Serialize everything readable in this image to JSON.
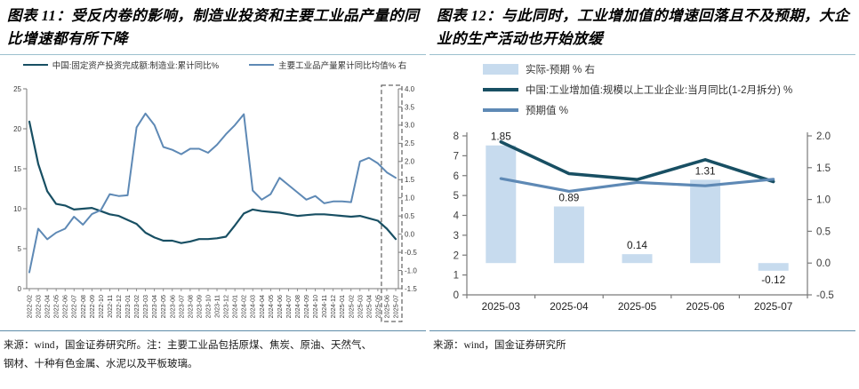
{
  "left_panel": {
    "title": "图表 11：受反内卷的影响，制造业投资和主要工业品产量的同比增速都有所下降",
    "legend": [
      {
        "label": "中国:固定资产投资完成额:制造业:累计同比%",
        "color": "#184F63",
        "type": "line"
      },
      {
        "label": "主要工业品产量累计同比均值% 右",
        "color": "#5E89B5",
        "type": "line"
      }
    ],
    "source_note_line1": "来源：wind，国金证券研究所。注：主要工业品包括原煤、焦炭、原油、天然气、",
    "source_note_line2": "钢材、十种有色金属、水泥以及平板玻璃。",
    "chart_data": {
      "type": "line",
      "x": [
        "2022-02",
        "2022-03",
        "2022-04",
        "2022-05",
        "2022-06",
        "2022-07",
        "2022-08",
        "2022-09",
        "2022-10",
        "2022-11",
        "2022-12",
        "2023-01",
        "2023-02",
        "2023-03",
        "2023-04",
        "2023-05",
        "2023-06",
        "2023-07",
        "2023-08",
        "2023-09",
        "2023-10",
        "2023-11",
        "2023-12",
        "2024-01",
        "2024-02",
        "2024-03",
        "2024-04",
        "2024-05",
        "2024-06",
        "2024-07",
        "2024-08",
        "2024-09",
        "2024-10",
        "2024-11",
        "2024-12",
        "2025-01",
        "2025-02",
        "2025-03",
        "2025-04",
        "2025-05",
        "2025-06",
        "2025-07"
      ],
      "series": [
        {
          "name": "中国:固定资产投资完成额:制造业:累计同比%",
          "axis": "left",
          "color": "#184F63",
          "width": 2.2,
          "values": [
            20.9,
            15.6,
            12.2,
            10.6,
            10.4,
            9.9,
            10.0,
            10.1,
            9.7,
            9.3,
            9.1,
            8.6,
            8.1,
            7.0,
            6.4,
            6.0,
            6.0,
            5.7,
            5.9,
            6.2,
            6.2,
            6.3,
            6.5,
            7.9,
            9.4,
            9.9,
            9.7,
            9.6,
            9.5,
            9.3,
            9.1,
            9.2,
            9.3,
            9.3,
            9.2,
            9.1,
            9.0,
            9.1,
            8.8,
            8.5,
            7.5,
            6.2
          ]
        },
        {
          "name": "主要工业品产量累计同比均值% 右",
          "axis": "right",
          "color": "#5E89B5",
          "width": 2,
          "values": [
            -1.05,
            0.15,
            -0.14,
            0.04,
            0.15,
            0.48,
            0.26,
            0.55,
            0.66,
            1.1,
            1.05,
            1.07,
            2.94,
            3.32,
            3.0,
            2.4,
            2.32,
            2.2,
            2.35,
            2.35,
            2.24,
            2.46,
            2.75,
            3.0,
            3.3,
            1.2,
            0.95,
            1.1,
            1.55,
            1.35,
            1.15,
            0.95,
            1.05,
            0.85,
            0.9,
            0.9,
            0.88,
            2.0,
            2.1,
            1.95,
            1.7,
            1.55
          ]
        }
      ],
      "left_axis": {
        "min": 0,
        "max": 25,
        "step": 5,
        "decimals": 0
      },
      "right_axis": {
        "min": -1.5,
        "max": 4.0,
        "step": 0.5,
        "decimals": 1
      },
      "highlight_box": {
        "start_index": 40,
        "end_index": 41,
        "style": "dashed"
      },
      "grid": false
    }
  },
  "right_panel": {
    "title": "图表 12：与此同时，工业增加值的增速回落且不及预期，大企业的生产活动也开始放缓",
    "legend": [
      {
        "label": "实际-预期 % 右",
        "color": "#C7DBEE",
        "type": "bar"
      },
      {
        "label": "中国:工业增加值:规模以上工业企业:当月同比(1-2月拆分) %",
        "color": "#184F63",
        "type": "line"
      },
      {
        "label": "预期值 %",
        "color": "#5E89B5",
        "type": "line"
      }
    ],
    "source_note": "来源：wind，国金证券研究所",
    "chart_data": {
      "type": "bar+line",
      "categories": [
        "2025-03",
        "2025-04",
        "2025-05",
        "2025-06",
        "2025-07"
      ],
      "bar_series": {
        "name": "实际-预期 % 右",
        "axis": "right",
        "color": "#C7DBEE",
        "values": [
          1.85,
          0.89,
          0.14,
          1.31,
          -0.12
        ],
        "labels": [
          "1.85",
          "0.89",
          "0.14",
          "1.31",
          "-0.12"
        ]
      },
      "line_series": [
        {
          "name": "中国:工业增加值:规模以上工业企业:当月同比(1-2月拆分) %",
          "axis": "left",
          "color": "#184F63",
          "width": 3.6,
          "values": [
            7.7,
            6.1,
            5.8,
            6.8,
            5.7
          ]
        },
        {
          "name": "预期值 %",
          "axis": "left",
          "color": "#5E89B5",
          "width": 3.2,
          "values": [
            5.85,
            5.21,
            5.66,
            5.49,
            5.82
          ]
        }
      ],
      "left_axis": {
        "min": 0,
        "max": 8,
        "step": 1,
        "decimals": 0
      },
      "right_axis": {
        "min": -0.5,
        "max": 2.0,
        "step": 0.5,
        "decimals": 1
      },
      "grid": false
    }
  }
}
